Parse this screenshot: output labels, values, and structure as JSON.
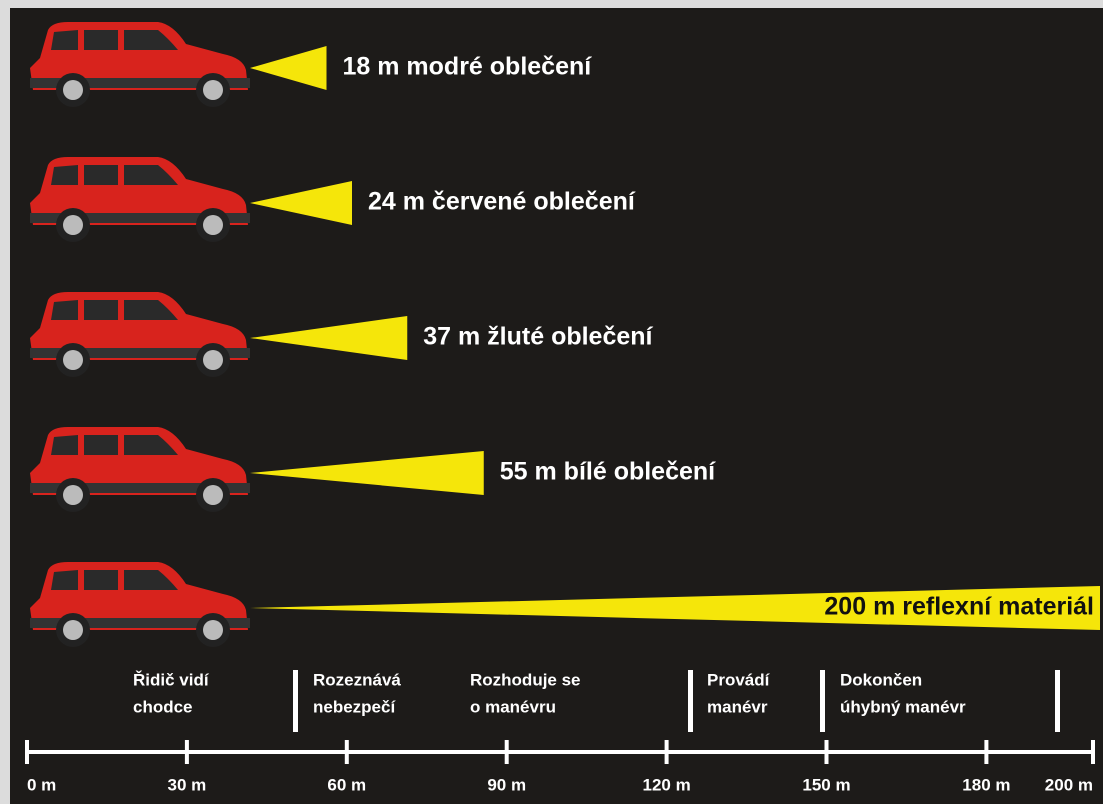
{
  "chart_data": {
    "type": "beam",
    "categories": [
      "18 m modré oblečení",
      "24 m červené oblečení",
      "37 m žluté oblečení",
      "55 m bílé oblečení",
      "200 m reflexní materiál"
    ],
    "values": [
      18,
      24,
      37,
      55,
      200
    ],
    "color": "#f5e60a",
    "xlim": [
      0,
      200
    ],
    "xticks": [
      {
        "value": 0,
        "label": "0 m"
      },
      {
        "value": 30,
        "label": "30 m"
      },
      {
        "value": 60,
        "label": "60 m"
      },
      {
        "value": 90,
        "label": "90 m"
      },
      {
        "value": 120,
        "label": "120 m"
      },
      {
        "value": 150,
        "label": "150 m"
      },
      {
        "value": 180,
        "label": "180 m"
      },
      {
        "value": 200,
        "label": "200 m"
      }
    ],
    "phases": [
      [
        "Řidič vidí",
        "chodce"
      ],
      [
        "Rozeznává",
        "nebezpečí"
      ],
      [
        "Rozhoduje se",
        "o manévru"
      ],
      [
        "Provádí",
        "manévr"
      ],
      [
        "Dokončen",
        "úhybný manévr"
      ]
    ]
  }
}
